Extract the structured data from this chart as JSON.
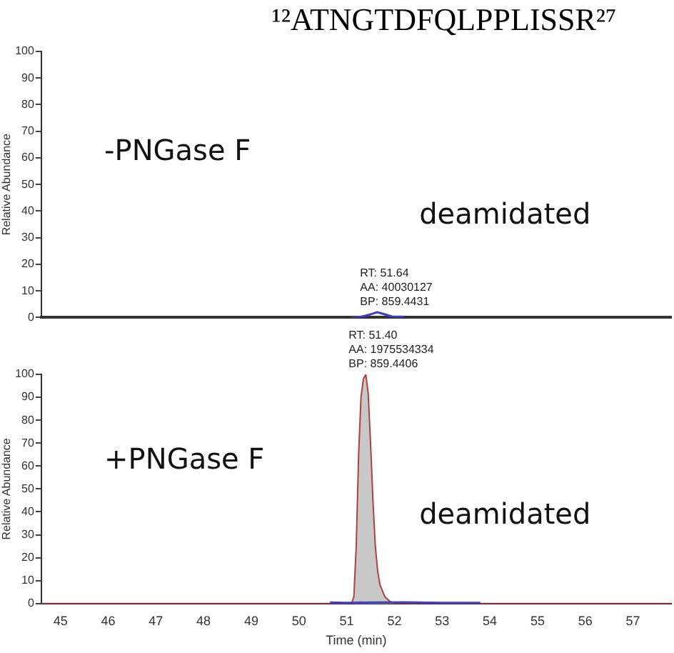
{
  "chart_data": [
    {
      "type": "line",
      "title": "¹²ATNGTDFQLPPLISSR²⁷",
      "ylabel": "Relative Abundance",
      "xlim": [
        44.6,
        57.8
      ],
      "ylim": [
        0,
        100
      ],
      "yticks": [
        0,
        10,
        20,
        30,
        40,
        50,
        60,
        70,
        80,
        90,
        100
      ],
      "tick_labels": "y",
      "grid": false,
      "legend": false,
      "marker": "none",
      "annotations": [
        "-PNGase F",
        "deamidated",
        {
          "text": "RT: 51.64\nAA: 40030127\nBP: 859.4431",
          "x": 51.64,
          "y": 2
        }
      ],
      "series": [
        {
          "color": "#4040c0",
          "x": [
            51.1,
            51.3,
            51.5,
            51.64,
            51.8,
            51.95,
            52.2
          ],
          "values": [
            0,
            0.3,
            1.2,
            2,
            1.2,
            0.4,
            0.3
          ]
        }
      ]
    },
    {
      "type": "area",
      "xlabel": "Time (min)",
      "ylabel": "Relative Abundance",
      "xlim": [
        44.6,
        57.8
      ],
      "xticks": [
        45,
        46,
        47,
        48,
        49,
        50,
        51,
        52,
        53,
        54,
        55,
        56,
        57
      ],
      "ylim": [
        0,
        100
      ],
      "yticks": [
        0,
        10,
        20,
        30,
        40,
        50,
        60,
        70,
        80,
        90,
        100
      ],
      "grid": false,
      "legend": false,
      "marker": "none",
      "annotations": [
        "+PNGase F",
        "deamidated",
        {
          "text": "RT: 51.40\nAA: 1975534334\nBP: 859.4406",
          "x": 51.4,
          "y": 100
        }
      ],
      "series": [
        {
          "color": "#c8c8c8",
          "x": [
            44.6,
            51.0,
            51.1,
            51.15,
            51.2,
            51.25,
            51.3,
            51.35,
            51.4,
            51.45,
            51.5,
            51.55,
            51.6,
            51.65,
            51.7,
            51.8,
            51.9,
            52.0,
            57.8
          ],
          "values": [
            0,
            0,
            0,
            3,
            25,
            65,
            90,
            98,
            100,
            92,
            70,
            45,
            25,
            14,
            8,
            3,
            1,
            0,
            0
          ]
        },
        {
          "type": "line",
          "color": "#4040c0",
          "x": [
            50.65,
            51.0,
            51.5,
            52.2,
            53.0,
            53.8
          ],
          "values": [
            0.5,
            0.3,
            0.5,
            0.6,
            0.3,
            0.3
          ]
        }
      ]
    }
  ]
}
